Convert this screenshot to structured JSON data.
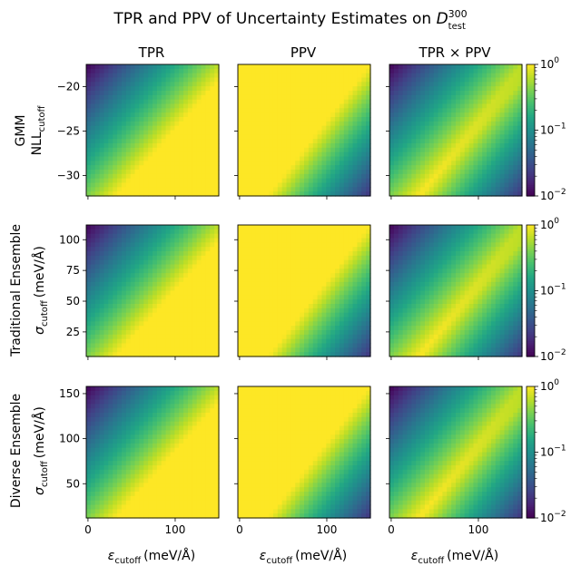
{
  "chart_data": {
    "type": "heatmap",
    "title": {
      "text": "TPR and PPV of Uncertainty Estimates on ",
      "symbol": "D",
      "superscript": "300",
      "subscript": "test"
    },
    "columns": [
      {
        "title": "TPR",
        "metric": "tpr"
      },
      {
        "title": "PPV",
        "metric": "ppv"
      },
      {
        "title": "TPR × PPV",
        "metric": "product"
      }
    ],
    "x_axis": {
      "label_symbol": "ε",
      "label_subscript": "cutoff",
      "label_units": "(meV/Å)",
      "range": [
        -2,
        150
      ],
      "ticks": [
        0,
        100
      ],
      "tick_labels": [
        "0",
        "100"
      ]
    },
    "rows": [
      {
        "method": "GMM",
        "ylabel_main": "NLL",
        "ylabel_subscript": "cutoff",
        "ylabel_units": "",
        "ylim": [
          -32.3,
          -17.5
        ],
        "yticks": [
          -20,
          -25,
          -30
        ],
        "ytick_labels": [
          "−20",
          "−25",
          "−30"
        ]
      },
      {
        "method": "Traditional Ensemble",
        "ylabel_main": "σ",
        "ylabel_subscript": "cutoff",
        "ylabel_units": "(meV/Å)",
        "ylim": [
          5,
          112
        ],
        "yticks": [
          100,
          75,
          50,
          25
        ],
        "ytick_labels": [
          "100",
          "75",
          "50",
          "25"
        ]
      },
      {
        "method": "Diverse Ensemble",
        "ylabel_main": "σ",
        "ylabel_subscript": "cutoff",
        "ylabel_units": "(meV/Å)",
        "ylim": [
          12,
          158
        ],
        "yticks": [
          150,
          100,
          50
        ],
        "ytick_labels": [
          "150",
          "100",
          "50"
        ]
      }
    ],
    "colorbar": {
      "scale": "log",
      "range": [
        0.01,
        1
      ],
      "tick_values": [
        1,
        0.1,
        0.01
      ],
      "tick_base": [
        "10",
        "10",
        "10"
      ],
      "tick_exponents": [
        "0",
        "−1",
        "−2"
      ],
      "colormap": "viridis"
    }
  }
}
